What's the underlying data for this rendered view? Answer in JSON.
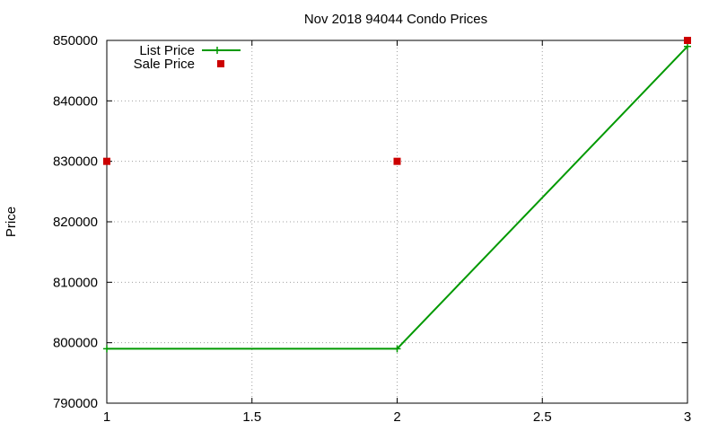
{
  "chart_data": {
    "type": "line",
    "title": "Nov 2018 94044 Condo Prices",
    "xlabel": "",
    "ylabel": "Price",
    "xlim": [
      1,
      3
    ],
    "ylim": [
      790000,
      850000
    ],
    "x_ticks": [
      "1",
      "1.5",
      "2",
      "2.5",
      "3"
    ],
    "y_ticks": [
      "790000",
      "800000",
      "810000",
      "820000",
      "830000",
      "840000",
      "850000"
    ],
    "grid": true,
    "legend_position": "top-left",
    "series": [
      {
        "name": "List Price",
        "style": "line",
        "color": "#009900",
        "x": [
          1,
          2,
          3
        ],
        "values": [
          799000,
          799000,
          849000
        ]
      },
      {
        "name": "Sale Price",
        "style": "points",
        "color": "#cc0000",
        "x": [
          1,
          2,
          3
        ],
        "values": [
          830000,
          830000,
          850000
        ]
      }
    ]
  }
}
